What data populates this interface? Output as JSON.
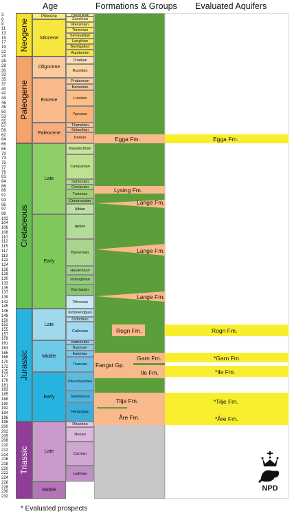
{
  "headers": {
    "age": "Age",
    "formations": "Formations & Groups",
    "aquifers": "Evaluated Aquifers"
  },
  "ticks": [
    "3",
    "6",
    "9",
    "11",
    "13",
    "15",
    "17",
    "19",
    "22",
    "24",
    "26",
    "28",
    "30",
    "33",
    "35",
    "37",
    "40",
    "42",
    "44",
    "46",
    "48",
    "50",
    "53",
    "55",
    "57",
    "59",
    "62",
    "64",
    "66",
    "68",
    "70",
    "73",
    "75",
    "77",
    "79",
    "81",
    "84",
    "86",
    "88",
    "91",
    "93",
    "95",
    "97",
    "99",
    "102",
    "104",
    "106",
    "108",
    "110",
    "112",
    "115",
    "117",
    "119",
    "122",
    "124",
    "126",
    "128",
    "130",
    "133",
    "135",
    "137",
    "139",
    "142",
    "145",
    "146",
    "148",
    "150",
    "152",
    "155",
    "157",
    "159",
    "161",
    "163",
    "165",
    "168",
    "170",
    "172",
    "175",
    "177",
    "179",
    "181",
    "183",
    "185",
    "188",
    "190",
    "192",
    "194",
    "196",
    "198",
    "200",
    "202",
    "205",
    "208",
    "210",
    "212",
    "214",
    "216",
    "218",
    "220",
    "222",
    "224",
    "226",
    "228",
    "230",
    "232"
  ],
  "eras": [
    {
      "name": "Neogene",
      "color": "#f7e12a"
    },
    {
      "name": "Paleogene",
      "color": "#f4a46a"
    },
    {
      "name": "Cretaceous",
      "color": "#66bf4f"
    },
    {
      "name": "Jurassic",
      "color": "#27b3e0"
    },
    {
      "name": "Triassic",
      "color": "#8f3d97"
    }
  ],
  "epochs": [
    {
      "name": "Pliocene",
      "color": "#fbeb7b"
    },
    {
      "name": "Miocene",
      "color": "#f7e540"
    },
    {
      "name": "Oligocene",
      "color": "#fcc99a"
    },
    {
      "name": "Eocene",
      "color": "#f9b98a"
    },
    {
      "name": "Paleocene",
      "color": "#f8ad7e"
    },
    {
      "name": "Late",
      "color": "#8fcf67"
    },
    {
      "name": "Early",
      "color": "#7fc95b"
    },
    {
      "name": "Late",
      "color": "#9fd9ec"
    },
    {
      "name": "Middle",
      "color": "#6dcbe9"
    },
    {
      "name": "Early",
      "color": "#27b3e0"
    },
    {
      "name": "Late",
      "color": "#c99acb"
    },
    {
      "name": "Middle",
      "color": "#b574b8"
    }
  ],
  "stages": [
    "Piacenzian",
    "Zanclean",
    "Messinian",
    "Tortonian",
    "Serravallian",
    "Langhian",
    "Burdigalian",
    "Aquitanian",
    "Chattian",
    "Rupelian",
    "Priabonian",
    "Bartonian",
    "Lutetian",
    "Ypresian",
    "Thanetian",
    "Selandian",
    "Danian",
    "Maastrichtian",
    "Campanian",
    "Santonian",
    "Coniacian",
    "Turonian",
    "Cenomanian",
    "Albian",
    "Aptian",
    "Barremian",
    "Hauterivian",
    "Valanginian",
    "Berriasian",
    "Tithonian",
    "Kimmeridgian",
    "Oxfordian",
    "Callovian",
    "Bathonian",
    "Bajocian",
    "Aalenian",
    "Toarcian",
    "Pliensbachian",
    "Sinemurian",
    "Hettangian",
    "Rhaetian",
    "Norian",
    "Carnian",
    "Ladinian"
  ],
  "formations": {
    "egga": "Egga Fm.",
    "lysing": "Lysing Fm.",
    "lange": "Lange Fm.",
    "rogn": "Rogn Fm.",
    "garn": "Garn Fm.",
    "fangst": "Fangst Gp.",
    "ile": "Ile Fm.",
    "tilje": "Tilje Fm.",
    "are": "Åre Fm."
  },
  "aquifers": {
    "egga": "Egga Fm.",
    "rogn": "Rogn Fm.",
    "garn": "*Garn Fm.",
    "ile": "*Ile Fm.",
    "tilje": "*Tilje Fm.",
    "are": "*Åre Fm."
  },
  "colors": {
    "green": "#5c9e3a",
    "grey": "#c8c8c8",
    "salmon": "#f9b98a",
    "yellow": "#f8ee2e"
  },
  "footnote": "* Evaluated prospects",
  "logo": {
    "text": "NPD"
  }
}
